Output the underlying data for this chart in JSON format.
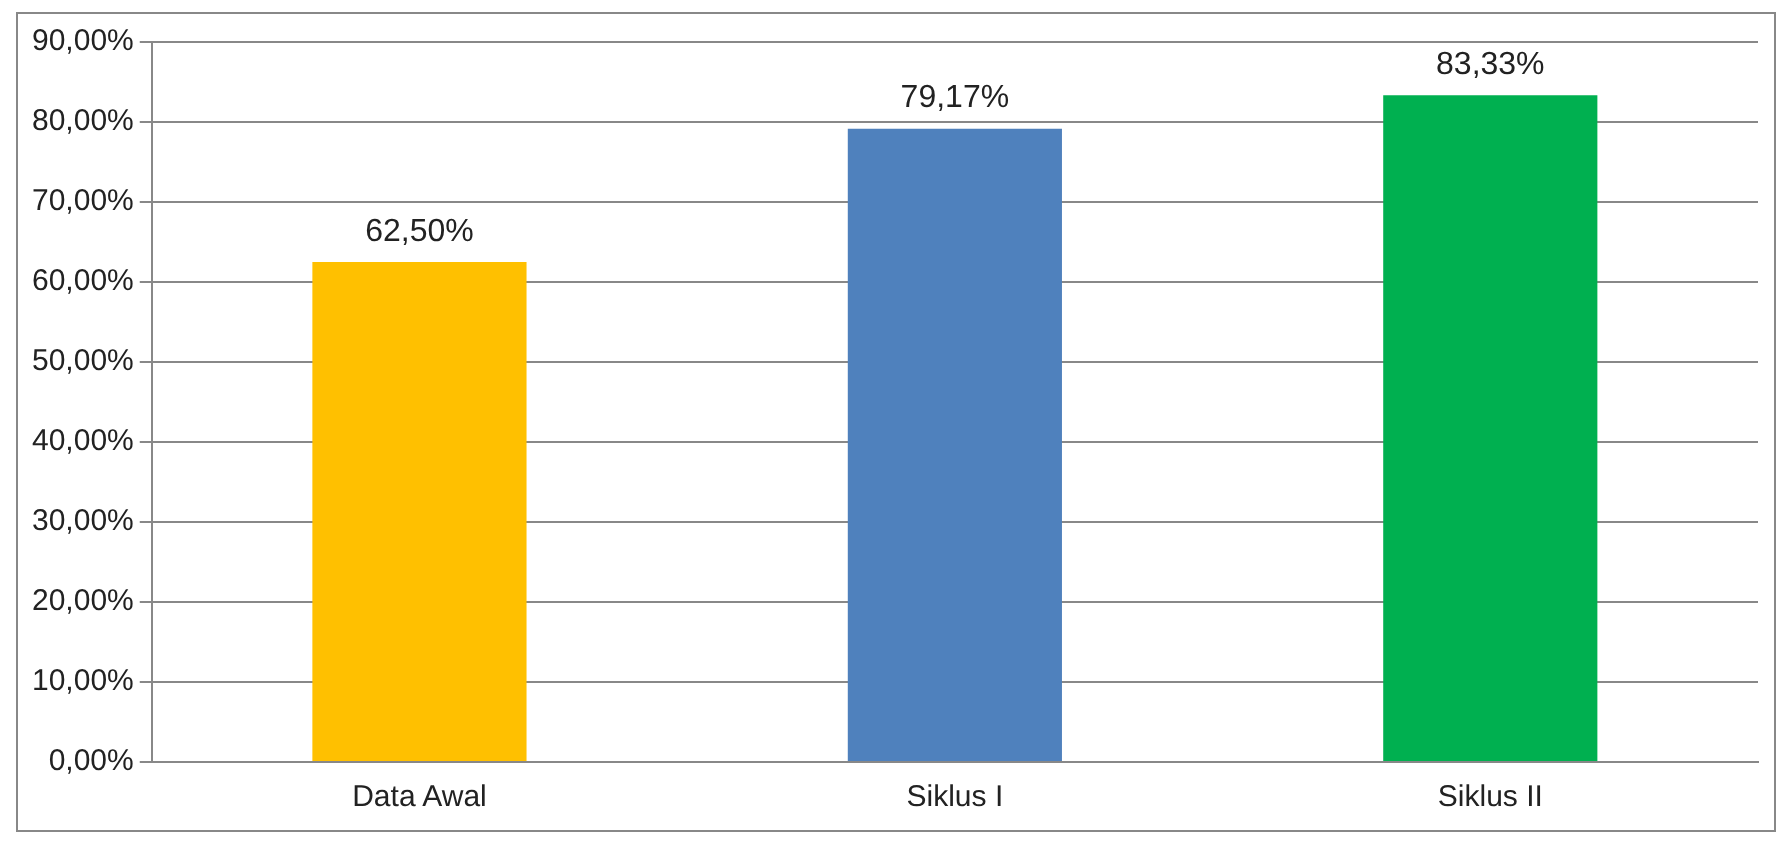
{
  "chart_data": {
    "type": "bar",
    "categories": [
      "Data Awal",
      "Siklus I",
      "Siklus II"
    ],
    "values": [
      62.5,
      79.17,
      83.33
    ],
    "colors": [
      "#ffc000",
      "#4f81bd",
      "#00b050"
    ],
    "value_labels": [
      "62,50%",
      "79,17%",
      "83,33%"
    ],
    "ylim": [
      0,
      90
    ],
    "yticks": [
      {
        "value": 0,
        "label": "0,00%"
      },
      {
        "value": 10,
        "label": "10,00%"
      },
      {
        "value": 20,
        "label": "20,00%"
      },
      {
        "value": 30,
        "label": "30,00%"
      },
      {
        "value": 40,
        "label": "40,00%"
      },
      {
        "value": 50,
        "label": "50,00%"
      },
      {
        "value": 60,
        "label": "60,00%"
      },
      {
        "value": 70,
        "label": "70,00%"
      },
      {
        "value": 80,
        "label": "80,00%"
      },
      {
        "value": 90,
        "label": "90,00%"
      }
    ],
    "grid": "y",
    "legend": false
  }
}
